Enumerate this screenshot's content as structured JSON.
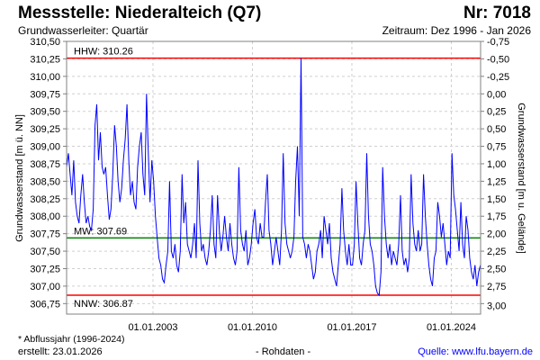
{
  "header": {
    "title": "Messstelle: Niederalteich (Q7)",
    "number": "Nr: 7018",
    "subtitle": "Grundwasserleiter: Quartär",
    "period": "Zeitraum: Dez 1996 - Jan 2026"
  },
  "footer": {
    "note": "* Abflussjahr (1996-2024)",
    "created": "erstellt:  23.01.2026",
    "rawdata": "- Rohdaten -",
    "source": "Quelle: www.lfu.bayern.de"
  },
  "colors": {
    "series": "#0000ff",
    "extreme": "#ff0000",
    "mean": "#008000",
    "grid": "#d0d0d0"
  },
  "chart_data": {
    "type": "line",
    "title": "Messstelle: Niederalteich (Q7)",
    "ylabel": "Grundwasserstand [m ü. NN]",
    "ylabel_right": "Grundwasserstand [m u. Gelände]",
    "ylim": [
      306.6,
      310.5
    ],
    "xlim": [
      1996.92,
      2026.06
    ],
    "grid": true,
    "y_ticks": [
      "306,75",
      "307,00",
      "307,25",
      "307,50",
      "307,75",
      "308,00",
      "308,25",
      "308,50",
      "308,75",
      "309,00",
      "309,25",
      "309,50",
      "309,75",
      "310,00",
      "310,25",
      "310,50"
    ],
    "y_tick_values": [
      306.75,
      307.0,
      307.25,
      307.5,
      307.75,
      308.0,
      308.25,
      308.5,
      308.75,
      309.0,
      309.25,
      309.5,
      309.75,
      310.0,
      310.25,
      310.5
    ],
    "y_right_ticks": [
      "3,00",
      "2,75",
      "2,50",
      "2,25",
      "2,00",
      "1,75",
      "1,50",
      "1,25",
      "1,00",
      "0,75",
      "0,50",
      "0,25",
      "0,00",
      "-0,25",
      "-0,50",
      "-0,75"
    ],
    "x_ticks": [
      "01.01.2003",
      "01.01.2010",
      "01.01.2017",
      "01.01.2024"
    ],
    "x_tick_values": [
      2003,
      2010,
      2017,
      2024
    ],
    "reference_lines": [
      {
        "label": "HHW: 310.26",
        "value": 310.26,
        "color": "#ff0000"
      },
      {
        "label": "MW: 307.69",
        "value": 307.69,
        "color": "#008000"
      },
      {
        "label": "NNW: 306.87",
        "value": 306.87,
        "color": "#ff0000"
      }
    ],
    "series": [
      {
        "name": "Grundwasserstand",
        "x_start": 1996.92,
        "x_step": 0.125,
        "values": [
          308.7,
          308.9,
          308.6,
          308.3,
          308.8,
          308.2,
          308.0,
          307.9,
          308.3,
          308.6,
          308.2,
          307.9,
          308.0,
          307.85,
          307.8,
          308.1,
          309.3,
          309.6,
          308.8,
          309.2,
          308.7,
          308.6,
          308.7,
          308.3,
          307.95,
          308.1,
          308.6,
          309.3,
          309.0,
          308.5,
          308.2,
          308.4,
          308.8,
          309.1,
          309.6,
          308.8,
          308.3,
          308.5,
          308.2,
          308.1,
          308.7,
          309.0,
          309.2,
          308.6,
          308.3,
          309.75,
          308.9,
          308.2,
          308.8,
          308.5,
          308.0,
          307.7,
          307.4,
          307.3,
          307.1,
          307.05,
          307.3,
          307.5,
          308.5,
          307.5,
          307.4,
          307.6,
          307.3,
          307.2,
          307.5,
          308.6,
          307.9,
          308.2,
          307.6,
          307.5,
          307.4,
          307.6,
          307.9,
          307.4,
          308.8,
          307.9,
          307.5,
          307.6,
          307.4,
          307.3,
          307.5,
          307.8,
          308.3,
          307.6,
          307.4,
          308.3,
          307.8,
          307.5,
          307.7,
          308.0,
          307.7,
          307.5,
          307.9,
          307.6,
          307.4,
          307.3,
          307.5,
          308.7,
          307.8,
          307.6,
          307.5,
          307.8,
          307.3,
          307.4,
          307.6,
          307.9,
          308.1,
          307.7,
          307.6,
          307.9,
          307.7,
          307.7,
          308.2,
          308.6,
          307.8,
          307.6,
          307.3,
          307.5,
          307.7,
          307.5,
          307.3,
          307.8,
          308.9,
          307.9,
          307.6,
          307.5,
          307.4,
          307.5,
          307.7,
          308.5,
          309.0,
          308.0,
          310.26,
          307.7,
          307.6,
          307.4,
          307.6,
          307.5,
          307.3,
          307.1,
          307.2,
          307.5,
          307.6,
          307.8,
          307.4,
          308.0,
          307.8,
          307.6,
          307.9,
          307.4,
          307.2,
          307.1,
          307.0,
          307.3,
          307.6,
          308.4,
          307.8,
          307.5,
          307.3,
          307.6,
          307.3,
          307.3,
          307.6,
          308.5,
          307.9,
          307.4,
          307.3,
          307.6,
          307.8,
          308.9,
          308.0,
          307.6,
          307.5,
          307.3,
          307.0,
          306.9,
          306.87,
          307.2,
          308.7,
          308.0,
          307.6,
          307.4,
          307.6,
          307.3,
          307.5,
          307.4,
          307.3,
          307.6,
          308.3,
          307.5,
          307.3,
          307.4,
          307.2,
          307.4,
          308.6,
          307.9,
          307.6,
          307.5,
          307.8,
          307.5,
          307.6,
          308.6,
          308.0,
          307.6,
          307.3,
          307.1,
          307.0,
          307.4,
          307.5,
          308.2,
          308.0,
          307.7,
          307.9,
          307.6,
          307.3,
          307.5,
          307.4,
          308.9,
          308.3,
          308.1,
          307.8,
          307.5,
          308.2,
          307.6,
          307.4,
          308.0,
          307.8,
          307.4,
          307.2,
          307.1,
          307.3,
          307.0,
          307.2,
          307.3
        ]
      }
    ]
  }
}
